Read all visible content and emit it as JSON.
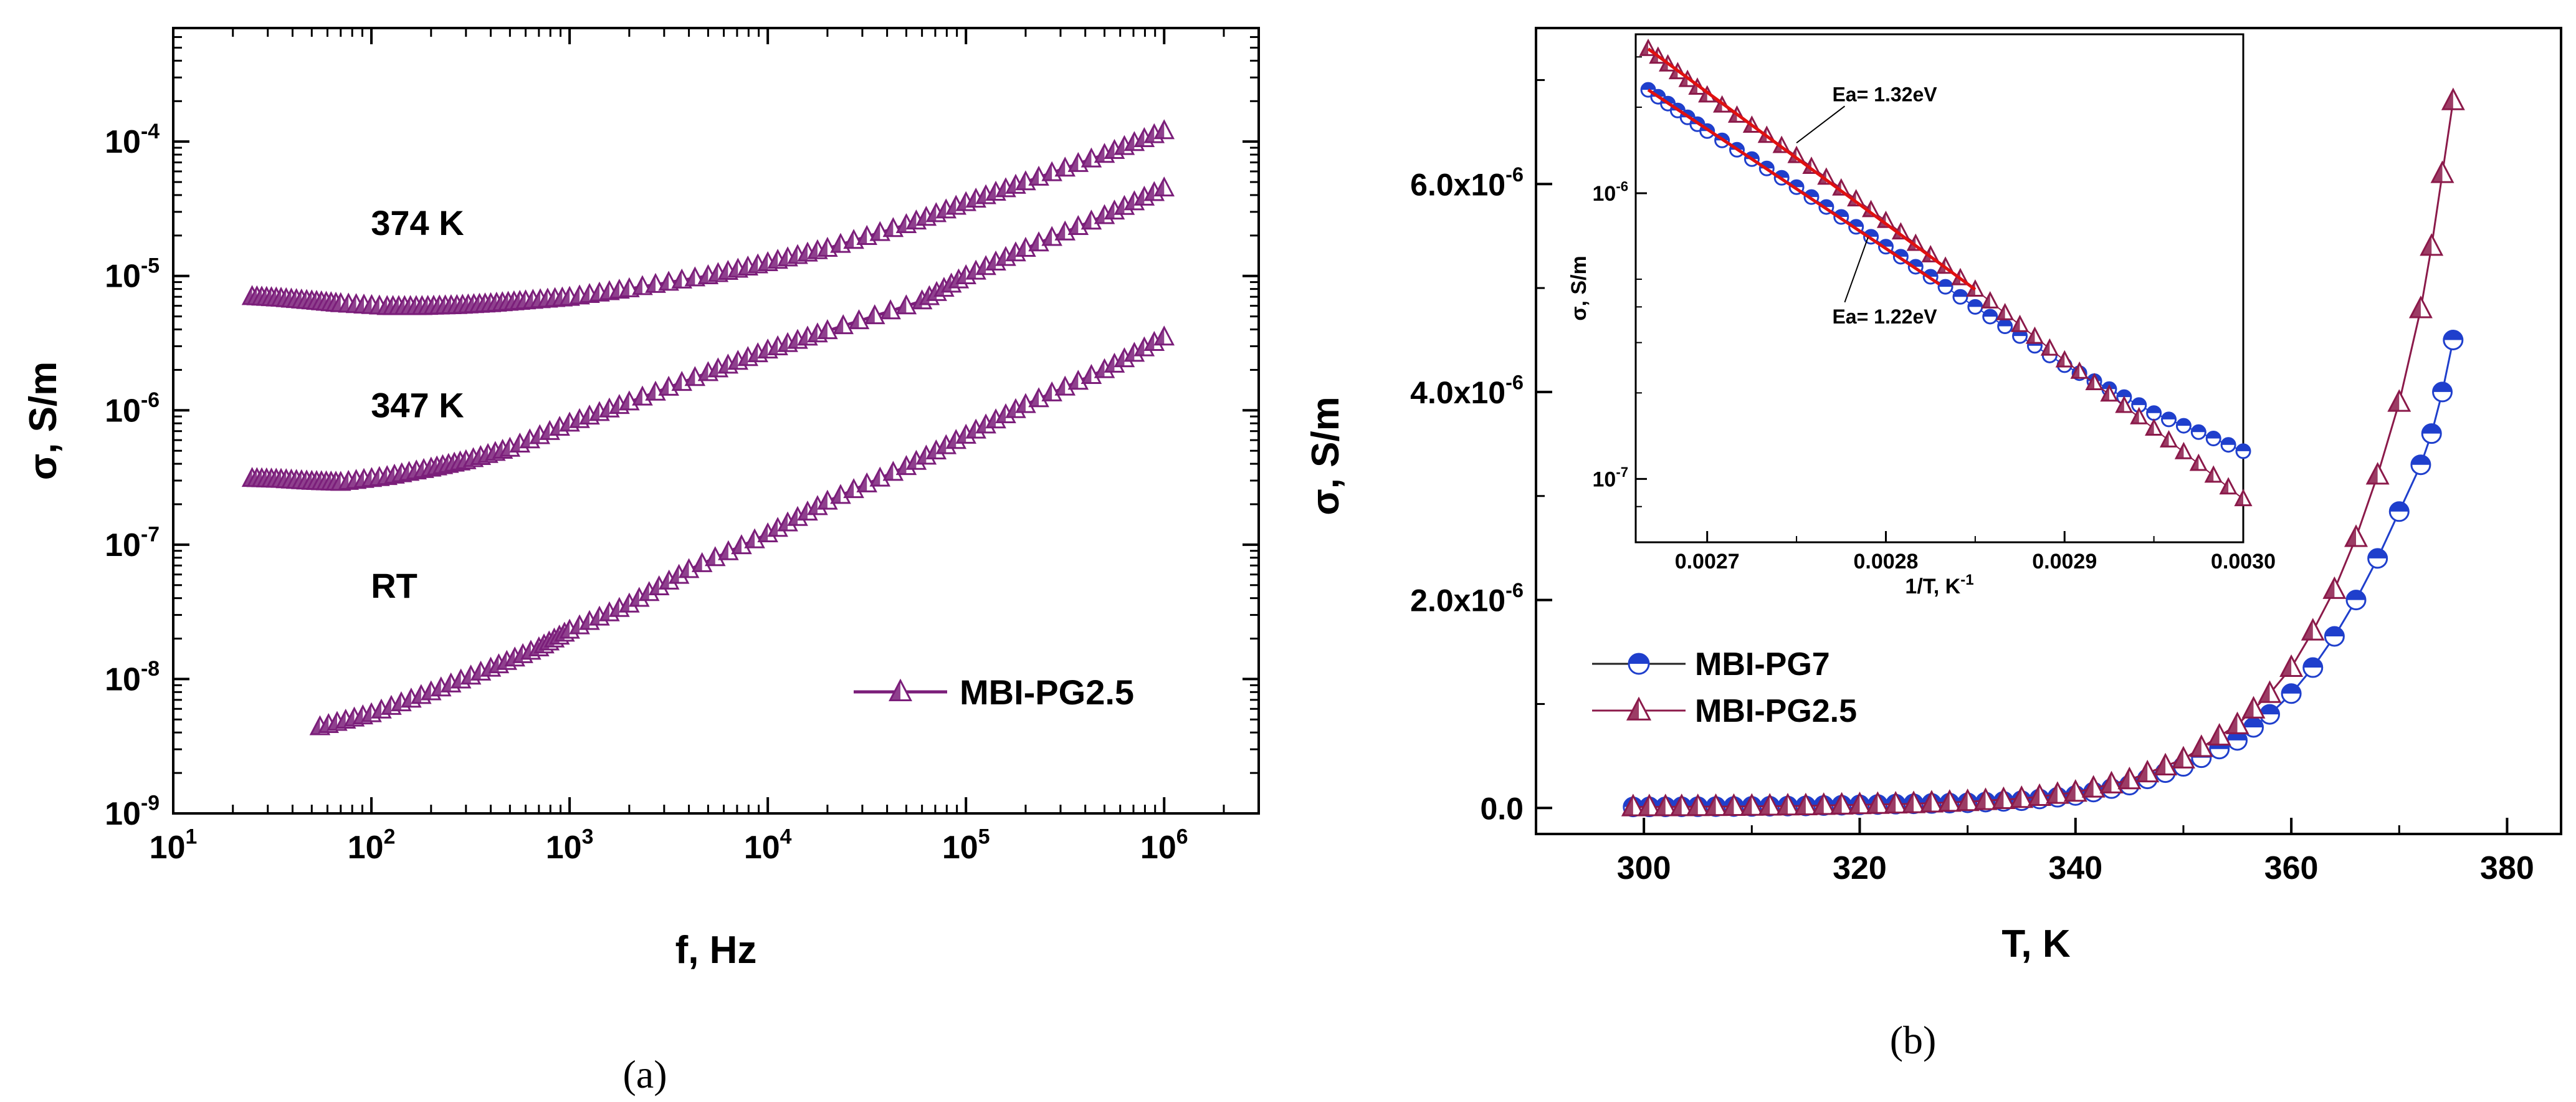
{
  "chart_data": [
    {
      "id": "a",
      "panel_label": "(a)",
      "type": "line",
      "xscale": "log",
      "yscale": "log",
      "xlabel": "f, Hz",
      "ylabel": "σ, S/m",
      "xlim": [
        10,
        3000000
      ],
      "ylim": [
        1e-09,
        0.0007
      ],
      "x_ticks": [
        {
          "value": 10,
          "base": "10",
          "exp": "1"
        },
        {
          "value": 100,
          "base": "10",
          "exp": "2"
        },
        {
          "value": 1000,
          "base": "10",
          "exp": "3"
        },
        {
          "value": 10000,
          "base": "10",
          "exp": "4"
        },
        {
          "value": 100000,
          "base": "10",
          "exp": "5"
        },
        {
          "value": 1000000,
          "base": "10",
          "exp": "6"
        }
      ],
      "y_ticks": [
        {
          "value": 1e-09,
          "base": "10",
          "exp": "-9"
        },
        {
          "value": 1e-08,
          "base": "10",
          "exp": "-8"
        },
        {
          "value": 1e-07,
          "base": "10",
          "exp": "-7"
        },
        {
          "value": 1e-06,
          "base": "10",
          "exp": "-6"
        },
        {
          "value": 1e-05,
          "base": "10",
          "exp": "-5"
        },
        {
          "value": 0.0001,
          "base": "10",
          "exp": "-4"
        }
      ],
      "legend": {
        "position": "bottom-right",
        "entries": [
          {
            "label": "MBI-PG2.5",
            "color": "#7b1e7a",
            "marker": "triangle"
          }
        ]
      },
      "series": [
        {
          "name": "374 K",
          "color": "#7b1e7a",
          "marker": "triangle",
          "points": [
            [
              25,
              7e-06
            ],
            [
              35,
              6.8e-06
            ],
            [
              50,
              6.5e-06
            ],
            [
              70,
              6.2e-06
            ],
            [
              120,
              5.9e-06
            ],
            [
              180,
              5.9e-06
            ],
            [
              270,
              6e-06
            ],
            [
              400,
              6.2e-06
            ],
            [
              600,
              6.5e-06
            ],
            [
              1000,
              6.9e-06
            ],
            [
              2000,
              8e-06
            ],
            [
              5000,
              1e-05
            ],
            [
              10000,
              1.25e-05
            ],
            [
              20000,
              1.6e-05
            ],
            [
              50000,
              2.4e-05
            ],
            [
              100000,
              3.5e-05
            ],
            [
              200000,
              5e-05
            ],
            [
              500000,
              8e-05
            ],
            [
              1000000,
              0.00012
            ]
          ]
        },
        {
          "name": "347 K",
          "color": "#7b1e7a",
          "marker": "triangle",
          "points": [
            [
              25,
              3.1e-07
            ],
            [
              35,
              3.05e-07
            ],
            [
              50,
              2.95e-07
            ],
            [
              70,
              2.9e-07
            ],
            [
              120,
              3.2e-07
            ],
            [
              200,
              3.7e-07
            ],
            [
              300,
              4.2e-07
            ],
            [
              500,
              5.2e-07
            ],
            [
              1000,
              8e-07
            ],
            [
              2000,
              1.15e-06
            ],
            [
              5000,
              1.9e-06
            ],
            [
              10000,
              2.8e-06
            ],
            [
              20000,
              3.9e-06
            ],
            [
              60000,
              6.5e-06
            ],
            [
              100000,
              1e-05
            ],
            [
              200000,
              1.6e-05
            ],
            [
              500000,
              2.8e-05
            ],
            [
              1000000,
              4.5e-05
            ]
          ]
        },
        {
          "name": "RT",
          "color": "#7b1e7a",
          "marker": "triangle",
          "points": [
            [
              55,
              4.4e-09
            ],
            [
              100,
              5.5e-09
            ],
            [
              200,
              8e-09
            ],
            [
              400,
              1.2e-08
            ],
            [
              700,
              1.7e-08
            ],
            [
              1000,
              2.3e-08
            ],
            [
              2000,
              3.6e-08
            ],
            [
              4000,
              6.5e-08
            ],
            [
              10000,
              1.2e-07
            ],
            [
              20000,
              2.1e-07
            ],
            [
              50000,
              3.8e-07
            ],
            [
              100000,
              6.5e-07
            ],
            [
              200000,
              1.1e-06
            ],
            [
              500000,
              2e-06
            ],
            [
              1000000,
              3.5e-06
            ]
          ]
        }
      ],
      "annotations": [
        {
          "text": "374 K",
          "x": 80,
          "y": 2.5e-05
        },
        {
          "text": "347 K",
          "x": 80,
          "y": 1.1e-06
        },
        {
          "text": "RT",
          "x": 80,
          "y": 5e-08
        }
      ]
    },
    {
      "id": "b",
      "panel_label": "(b)",
      "type": "line",
      "xlabel": "T, K",
      "ylabel": "σ, S/m",
      "xlim": [
        290,
        385
      ],
      "ylim": [
        -2.5e-07,
        7.5e-06
      ],
      "x_ticks": [
        {
          "value": 300,
          "label": "300"
        },
        {
          "value": 320,
          "label": "320"
        },
        {
          "value": 340,
          "label": "340"
        },
        {
          "value": 360,
          "label": "360"
        },
        {
          "value": 380,
          "label": "380"
        }
      ],
      "y_ticks": [
        {
          "value": 0,
          "label": "0.0"
        },
        {
          "value": 2e-06,
          "label": "2.0x10",
          "exp": "-6"
        },
        {
          "value": 4e-06,
          "label": "4.0x10",
          "exp": "-6"
        },
        {
          "value": 6e-06,
          "label": "6.0x10",
          "exp": "-6"
        }
      ],
      "legend": {
        "position": "bottom-left",
        "entries": [
          {
            "label": "MBI-PG7",
            "color": "#1f3fcc",
            "marker": "circle"
          },
          {
            "label": "MBI-PG2.5",
            "color": "#8b1a4a",
            "marker": "triangle"
          }
        ]
      },
      "series": [
        {
          "name": "MBI-PG7",
          "color": "#1f3fcc",
          "marker": "circle",
          "points": [
            [
              299,
              1e-08
            ],
            [
              305,
              1.2e-08
            ],
            [
              310,
              1.5e-08
            ],
            [
              315,
              2e-08
            ],
            [
              320,
              3e-08
            ],
            [
              325,
              4e-08
            ],
            [
              330,
              5e-08
            ],
            [
              335,
              7e-08
            ],
            [
              340,
              1.2e-07
            ],
            [
              345,
              2.2e-07
            ],
            [
              350,
              4e-07
            ],
            [
              355,
              6.5e-07
            ],
            [
              358,
              9e-07
            ],
            [
              360,
              1.1e-06
            ],
            [
              362,
              1.35e-06
            ],
            [
              364,
              1.65e-06
            ],
            [
              366,
              2e-06
            ],
            [
              368,
              2.4e-06
            ],
            [
              370,
              2.85e-06
            ],
            [
              372,
              3.3e-06
            ],
            [
              373,
              3.6e-06
            ],
            [
              374,
              4e-06
            ],
            [
              375,
              4.5e-06
            ]
          ]
        },
        {
          "name": "MBI-PG2.5",
          "color": "#8b1a4a",
          "marker": "triangle",
          "points": [
            [
              299,
              1e-08
            ],
            [
              305,
              1.2e-08
            ],
            [
              310,
              1.5e-08
            ],
            [
              315,
              2e-08
            ],
            [
              320,
              3e-08
            ],
            [
              325,
              4e-08
            ],
            [
              330,
              6e-08
            ],
            [
              335,
              9e-08
            ],
            [
              340,
              1.5e-07
            ],
            [
              345,
              2.7e-07
            ],
            [
              350,
              4.7e-07
            ],
            [
              355,
              8e-07
            ],
            [
              358,
              1.1e-06
            ],
            [
              360,
              1.35e-06
            ],
            [
              362,
              1.7e-06
            ],
            [
              364,
              2.1e-06
            ],
            [
              366,
              2.6e-06
            ],
            [
              368,
              3.2e-06
            ],
            [
              370,
              3.9e-06
            ],
            [
              372,
              4.8e-06
            ],
            [
              373,
              5.4e-06
            ],
            [
              374,
              6.1e-06
            ],
            [
              375,
              6.8e-06
            ]
          ]
        }
      ],
      "inset": {
        "type": "line",
        "yscale": "log",
        "xlabel": "1/T, K",
        "xlabel_exp": "-1",
        "ylabel": "σ, S/m",
        "xlim": [
          0.00266,
          0.003
        ],
        "ylim": [
          6e-08,
          3.6e-06
        ],
        "x_ticks": [
          {
            "value": 0.0027,
            "label": "0.0027"
          },
          {
            "value": 0.0028,
            "label": "0.0028"
          },
          {
            "value": 0.0029,
            "label": "0.0029"
          },
          {
            "value": 0.003,
            "label": "0.0030"
          }
        ],
        "y_ticks": [
          {
            "value": 1e-06,
            "base": "10",
            "exp": "-6"
          },
          {
            "value": 1e-07,
            "base": "10",
            "exp": "-7"
          }
        ],
        "series": [
          {
            "name": "MBI-PG7",
            "color": "#1f3fcc",
            "marker": "circle",
            "points": [
              [
                0.002667,
                2.3e-06
              ],
              [
                0.0027,
                1.65e-06
              ],
              [
                0.00275,
                1.05e-06
              ],
              [
                0.0028,
                6.5e-07
              ],
              [
                0.00285,
                4e-07
              ],
              [
                0.0029,
                2.5e-07
              ],
              [
                0.00295,
                1.7e-07
              ],
              [
                0.003,
                1.25e-07
              ]
            ]
          },
          {
            "name": "MBI-PG2.5",
            "color": "#8b1a4a",
            "marker": "triangle",
            "points": [
              [
                0.002667,
                3.2e-06
              ],
              [
                0.0027,
                2.2e-06
              ],
              [
                0.00275,
                1.35e-06
              ],
              [
                0.0028,
                8e-07
              ],
              [
                0.00285,
                4.6e-07
              ],
              [
                0.0029,
                2.6e-07
              ],
              [
                0.00295,
                1.5e-07
              ],
              [
                0.003,
                8.5e-08
              ]
            ]
          }
        ],
        "fit_lines": [
          {
            "color": "#e01010",
            "points": [
              [
                0.002667,
                3.2e-06
              ],
              [
                0.00285,
                4.6e-07
              ]
            ]
          },
          {
            "color": "#e01010",
            "points": [
              [
                0.002667,
                2.3e-06
              ],
              [
                0.00283,
                4.8e-07
              ]
            ]
          }
        ],
        "annotations": [
          {
            "text": "Ea= 1.32eV",
            "x": 0.00277,
            "y": 2.1e-06,
            "arrow_to": [
              0.00275,
              1.5e-06
            ]
          },
          {
            "text": "Ea= 1.22eV",
            "x": 0.00277,
            "y": 3.5e-07,
            "arrow_to": [
              0.00279,
              7e-07
            ]
          }
        ]
      }
    }
  ]
}
